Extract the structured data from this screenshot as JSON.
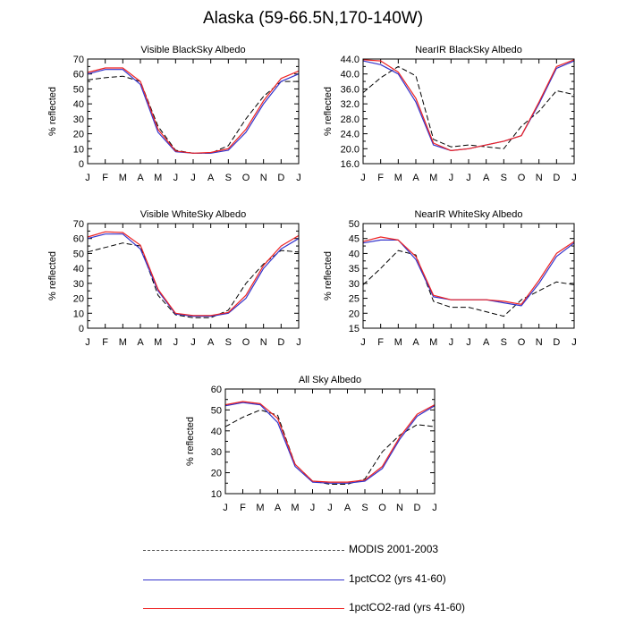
{
  "title": "Alaska (59-66.5N,170-140W)",
  "colors": {
    "modis": "#000000",
    "pct": "#3333cc",
    "rad": "#ee2222"
  },
  "legend": [
    {
      "label": "MODIS 2001-2003",
      "style": "dashed",
      "color": "#000000"
    },
    {
      "label": "1pctCO2 (yrs 41-60)",
      "style": "solid",
      "color": "#3333cc"
    },
    {
      "label": "1pctCO2-rad (yrs 41-60)",
      "style": "solid",
      "color": "#ee2222"
    }
  ],
  "chart_data": [
    {
      "type": "line",
      "title": "Visible BlackSky Albedo",
      "ylabel": "% reflected",
      "x": [
        "J",
        "F",
        "M",
        "A",
        "M",
        "J",
        "J",
        "A",
        "S",
        "O",
        "N",
        "D",
        "J"
      ],
      "ylim": [
        0,
        70
      ],
      "yticks": [
        "0",
        "10",
        "20",
        "30",
        "40",
        "50",
        "60",
        "70"
      ],
      "series": [
        {
          "name": "MODIS 2001-2003",
          "values": [
            56,
            57.5,
            58.5,
            55,
            25,
            9,
            7,
            7,
            12,
            30,
            45,
            55,
            55
          ]
        },
        {
          "name": "1pctCO2 (yrs 41-60)",
          "values": [
            60,
            63,
            63,
            53,
            21,
            8,
            7,
            7,
            9,
            21,
            40,
            55,
            60
          ]
        },
        {
          "name": "1pctCO2-rad (yrs 41-60)",
          "values": [
            61,
            64,
            64,
            55,
            23,
            8.5,
            7,
            7.5,
            10,
            23,
            42,
            57,
            62
          ]
        }
      ]
    },
    {
      "type": "line",
      "title": "NearIR BlackSky Albedo",
      "ylabel": "% reflected",
      "x": [
        "J",
        "F",
        "M",
        "A",
        "M",
        "J",
        "J",
        "A",
        "S",
        "O",
        "N",
        "D",
        "J"
      ],
      "ylim": [
        16,
        44
      ],
      "yticks": [
        "16.0",
        "20.0",
        "24.0",
        "28.0",
        "32.0",
        "36.0",
        "40.0",
        "44.0"
      ],
      "series": [
        {
          "name": "MODIS 2001-2003",
          "values": [
            35,
            39,
            42,
            39.5,
            22.5,
            20.5,
            21,
            20.5,
            20,
            26,
            30,
            35.5,
            34.5
          ]
        },
        {
          "name": "1pctCO2 (yrs 41-60)",
          "values": [
            43.5,
            42.5,
            40,
            32.5,
            21,
            19.5,
            20,
            21,
            22,
            23.5,
            32,
            41.5,
            43.5
          ]
        },
        {
          "name": "1pctCO2-rad (yrs 41-60)",
          "values": [
            43.8,
            43.5,
            40.5,
            33.5,
            21.5,
            19.5,
            20,
            21,
            22,
            23.5,
            32.5,
            42,
            43.8
          ]
        }
      ]
    },
    {
      "type": "line",
      "title": "Visible WhiteSky Albedo",
      "ylabel": "% reflected",
      "x": [
        "J",
        "F",
        "M",
        "A",
        "M",
        "J",
        "J",
        "A",
        "S",
        "O",
        "N",
        "D",
        "J"
      ],
      "ylim": [
        0,
        70
      ],
      "yticks": [
        "0",
        "10",
        "20",
        "30",
        "40",
        "50",
        "60",
        "70"
      ],
      "series": [
        {
          "name": "MODIS 2001-2003",
          "values": [
            51,
            54,
            57,
            55,
            22,
            9,
            7,
            7,
            12,
            30,
            43,
            52,
            51
          ]
        },
        {
          "name": "1pctCO2 (yrs 41-60)",
          "values": [
            60,
            63,
            63,
            53,
            25,
            9.5,
            8,
            8,
            10,
            20,
            40,
            53,
            60
          ]
        },
        {
          "name": "1pctCO2-rad (yrs 41-60)",
          "values": [
            61,
            64.5,
            64,
            55.5,
            26,
            10,
            8.5,
            8.5,
            10.5,
            22,
            42,
            55,
            62
          ]
        }
      ]
    },
    {
      "type": "line",
      "title": "NearIR WhiteSky Albedo",
      "ylabel": "% reflected",
      "x": [
        "J",
        "F",
        "M",
        "A",
        "M",
        "J",
        "J",
        "A",
        "S",
        "O",
        "N",
        "D",
        "J"
      ],
      "ylim": [
        15,
        50
      ],
      "yticks": [
        "15",
        "20",
        "25",
        "30",
        "35",
        "40",
        "45",
        "50"
      ],
      "series": [
        {
          "name": "MODIS 2001-2003",
          "values": [
            29.5,
            35,
            41,
            39.5,
            24,
            22,
            22,
            20.5,
            19,
            24.5,
            27.5,
            30.5,
            29.5
          ]
        },
        {
          "name": "1pctCO2 (yrs 41-60)",
          "values": [
            43.5,
            44.5,
            44.5,
            38,
            25.5,
            24.5,
            24.5,
            24.5,
            23.5,
            22.5,
            30,
            39,
            43.5
          ]
        },
        {
          "name": "1pctCO2-rad (yrs 41-60)",
          "values": [
            44,
            45.5,
            44.5,
            39,
            26,
            24.5,
            24.5,
            24.5,
            24,
            23,
            31,
            40,
            44
          ]
        }
      ]
    },
    {
      "type": "line",
      "title": "All Sky Albedo",
      "ylabel": "% reflected",
      "x": [
        "J",
        "F",
        "M",
        "A",
        "M",
        "J",
        "J",
        "A",
        "S",
        "O",
        "N",
        "D",
        "J"
      ],
      "ylim": [
        10,
        60
      ],
      "yticks": [
        "10",
        "20",
        "30",
        "40",
        "50",
        "60"
      ],
      "series": [
        {
          "name": "MODIS 2001-2003",
          "values": [
            42,
            46.5,
            50,
            47.5,
            24,
            16,
            14.5,
            14.5,
            17,
            30,
            38,
            43,
            42
          ]
        },
        {
          "name": "1pctCO2 (yrs 41-60)",
          "values": [
            52,
            53.5,
            52.5,
            44,
            23,
            15.5,
            15,
            15,
            16,
            22,
            36,
            47,
            52
          ]
        },
        {
          "name": "1pctCO2-rad (yrs 41-60)",
          "values": [
            52.5,
            54,
            53,
            46,
            24,
            16,
            15.5,
            15.5,
            16.5,
            23,
            37,
            48,
            52.5
          ]
        }
      ]
    }
  ]
}
